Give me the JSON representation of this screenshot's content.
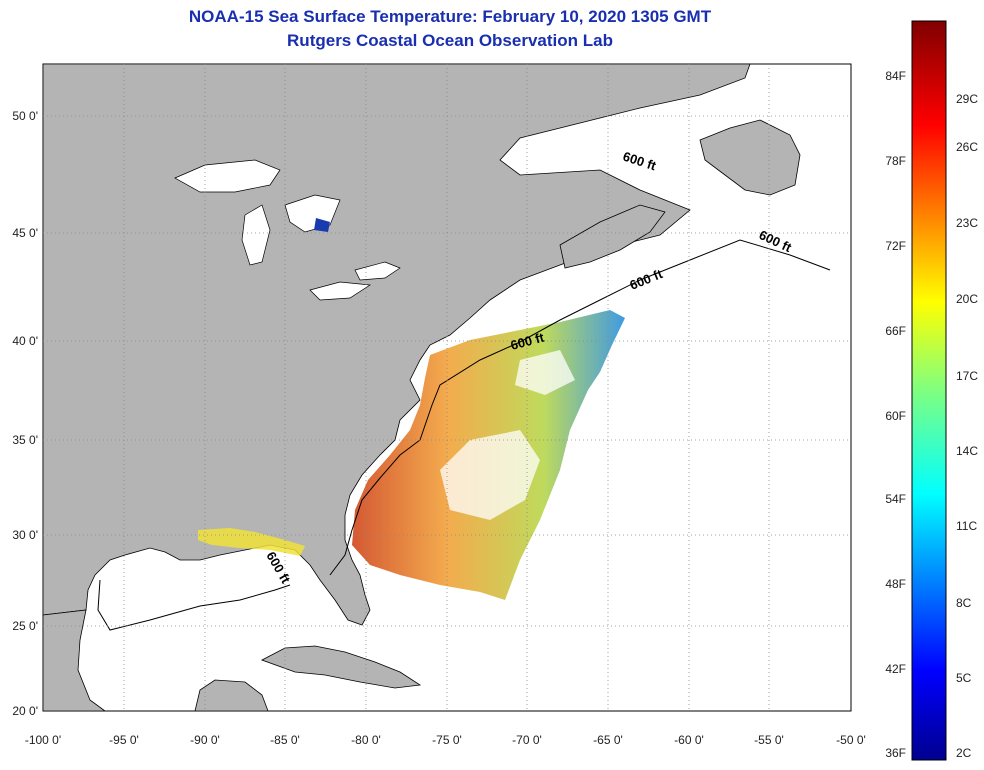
{
  "header": {
    "title": "NOAA-15 Sea Surface Temperature:  February 10, 2020 1305 GMT",
    "subtitle": "Rutgers Coastal Ocean Observation Lab"
  },
  "map": {
    "lon_labels": [
      "-100 0'",
      "-95 0'",
      "-90 0'",
      "-85 0'",
      "-80 0'",
      "-75 0'",
      "-70 0'",
      "-65 0'",
      "-60 0'",
      "-55 0'",
      "-50 0'"
    ],
    "lat_labels": [
      "50 0'",
      "45 0'",
      "40 0'",
      "35 0'",
      "30 0'",
      "25 0'",
      "20 0'"
    ],
    "contour_label": "600 ft",
    "colors": {
      "land": "#b4b4b4",
      "ocean": "#ffffff",
      "grid": "#888888"
    }
  },
  "colorbar": {
    "f_labels": [
      "84F",
      "78F",
      "72F",
      "66F",
      "60F",
      "54F",
      "48F",
      "42F",
      "36F"
    ],
    "c_labels": [
      "29C",
      "26C",
      "23C",
      "20C",
      "17C",
      "14C",
      "11C",
      "8C",
      "5C",
      "2C"
    ]
  }
}
